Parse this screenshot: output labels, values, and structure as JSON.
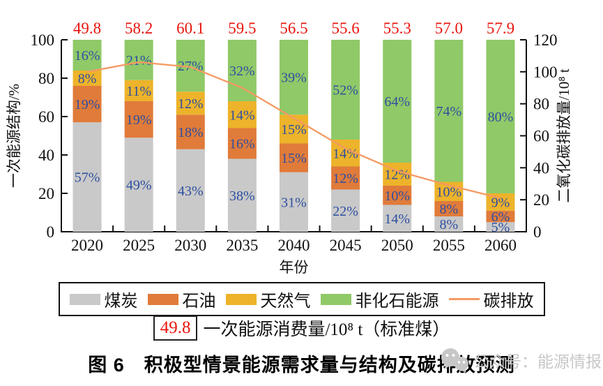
{
  "figure": {
    "caption": "图 6　积极型情景能源需求量与结构及碳排放预测",
    "watermark": "公众号：能源情报",
    "watermark_color": "#c7c7c7"
  },
  "chart_data": {
    "type": "bar",
    "subtype": "100%-stacked-bars-with-line-overlay",
    "categories": [
      "2020",
      "2025",
      "2030",
      "2035",
      "2040",
      "2045",
      "2050",
      "2055",
      "2060"
    ],
    "xlabel": "年份",
    "ylabel_left": "一次能源结构/%",
    "ylabel_right": "二氧化碳排放量/10⁸ t",
    "ylim_left": [
      0,
      100
    ],
    "yticks_left": [
      0,
      20,
      40,
      60,
      80,
      100
    ],
    "ylim_right": [
      0,
      120
    ],
    "yticks_right": [
      0,
      20,
      40,
      60,
      80,
      100,
      120
    ],
    "grid": "off",
    "legend_position": "bottom",
    "series": [
      {
        "name": "煤炭",
        "color": "#c9c9c9",
        "unit": "%",
        "values": [
          57,
          49,
          43,
          38,
          31,
          22,
          14,
          8,
          5
        ]
      },
      {
        "name": "石油",
        "color": "#e07b3a",
        "unit": "%",
        "values": [
          19,
          19,
          18,
          16,
          15,
          12,
          10,
          8,
          6
        ]
      },
      {
        "name": "天然气",
        "color": "#edb32a",
        "unit": "%",
        "values": [
          8,
          11,
          12,
          14,
          15,
          14,
          12,
          10,
          9
        ]
      },
      {
        "name": "非化石能源",
        "color": "#8fc968",
        "unit": "%",
        "values": [
          16,
          21,
          27,
          32,
          39,
          52,
          64,
          74,
          80
        ]
      }
    ],
    "line_series": {
      "name": "碳排放",
      "axis": "right",
      "unit": "10⁸ t",
      "color": "#f49a62",
      "values": [
        100,
        106,
        103,
        90,
        71,
        52,
        38,
        29,
        21
      ]
    },
    "top_values": {
      "name": "一次能源消费量",
      "unit": "10⁸ t（标准煤）",
      "color": "#e8150d",
      "values": [
        "49.8",
        "58.2",
        "60.1",
        "59.5",
        "56.5",
        "55.6",
        "55.3",
        "57.0",
        "57.9"
      ]
    },
    "label_color": "#2d4fa1",
    "axis_color": "#111111",
    "annotation": {
      "box_value": "49.8",
      "text": "一次能源消费量/10⁸ t（标准煤）"
    }
  }
}
